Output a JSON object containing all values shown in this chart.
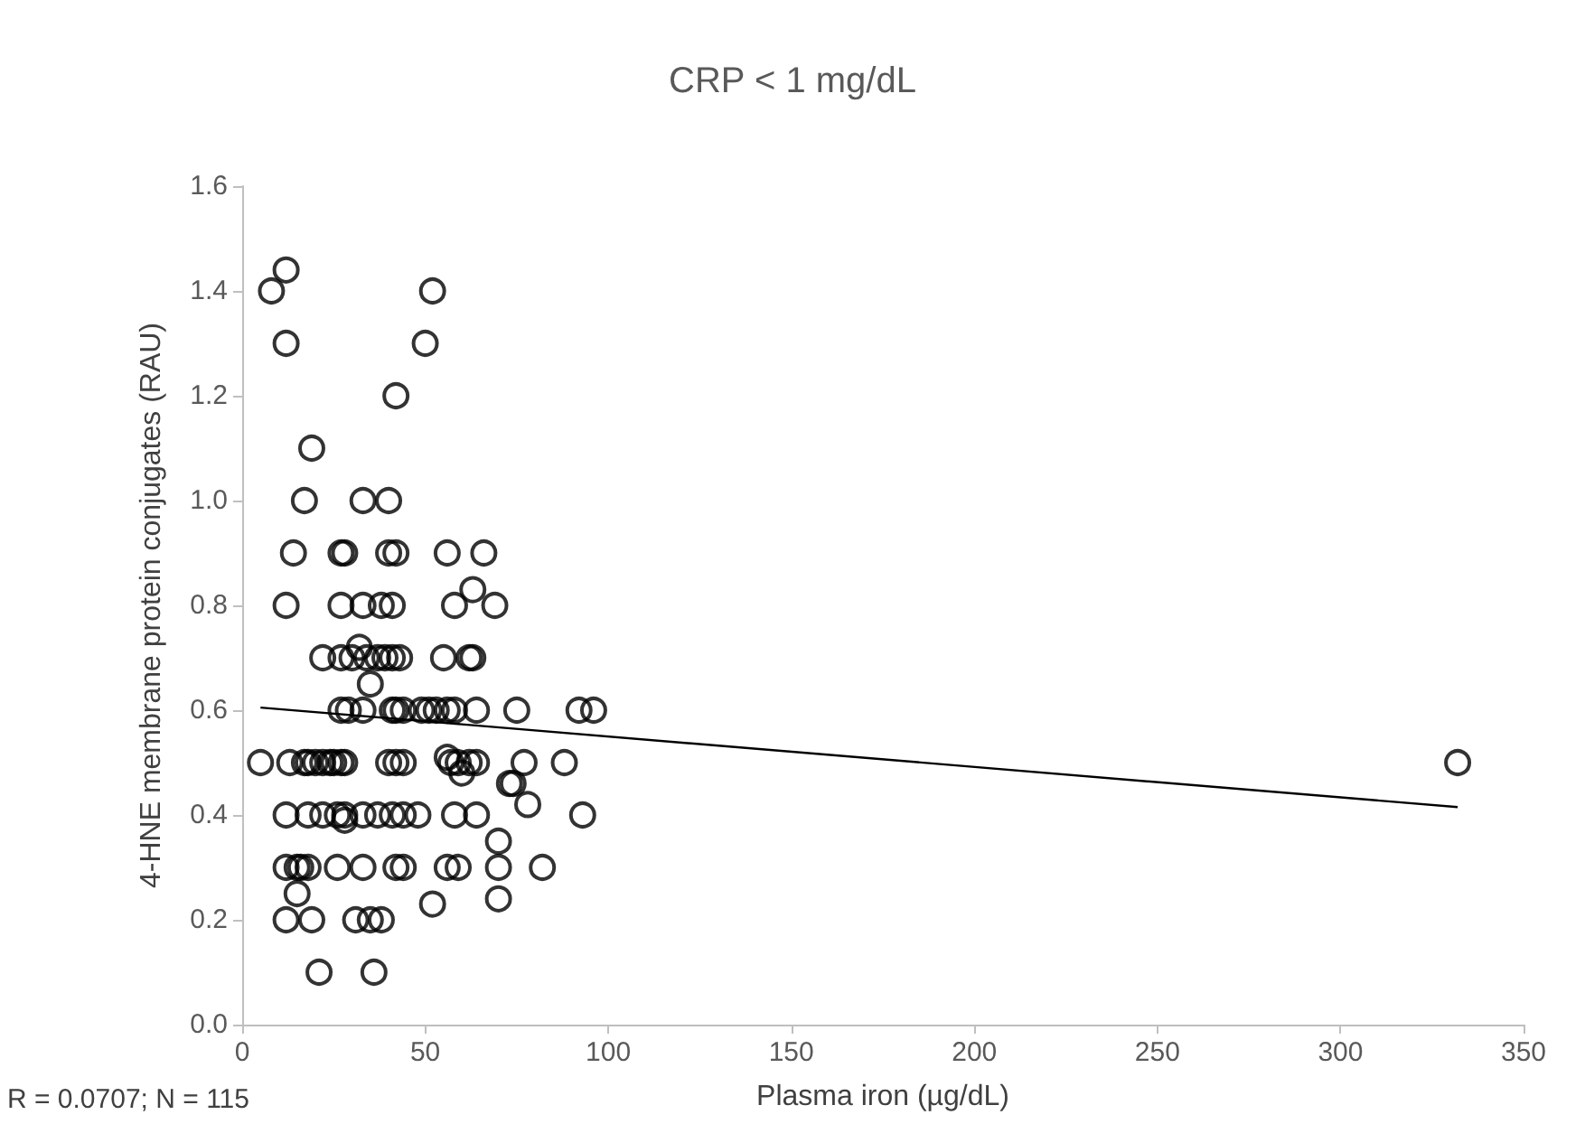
{
  "chart_data": {
    "type": "scatter",
    "title": "CRP < 1 mg/dL",
    "xlabel": "Plasma iron (µg/dL)",
    "ylabel": "4-HNE membrane protein conjugates (RAU)",
    "annotations": [
      "R = 0.0707; N = 115"
    ],
    "xlim": [
      0,
      350
    ],
    "xticks": [
      0,
      50,
      100,
      150,
      200,
      250,
      300,
      350
    ],
    "ylim": [
      0,
      1.6
    ],
    "yticks": [
      {
        "value": 0,
        "label": "0.0"
      },
      {
        "value": 0.2,
        "label": "0.2"
      },
      {
        "value": 0.4,
        "label": "0.4"
      },
      {
        "value": 0.6,
        "label": "0.6"
      },
      {
        "value": 0.8,
        "label": "0.8"
      },
      {
        "value": 1,
        "label": "1.0"
      },
      {
        "value": 1.2,
        "label": "1.2"
      },
      {
        "value": 1.4,
        "label": "1.4"
      },
      {
        "value": 1.6,
        "label": "1.6"
      }
    ],
    "grid": false,
    "marker": "circle",
    "series": [
      {
        "color": "#000000",
        "x": [
          12,
          8,
          52,
          12,
          50,
          42,
          19,
          17,
          33,
          40,
          14,
          27,
          28,
          40,
          42,
          56,
          66,
          12,
          27,
          33,
          38,
          41,
          58,
          69,
          63,
          32,
          22,
          27,
          30,
          34,
          37,
          39,
          41,
          43,
          55,
          62,
          63,
          35,
          27,
          29,
          33,
          41,
          42,
          44,
          49,
          51,
          53,
          56,
          58,
          64,
          75,
          92,
          96,
          5,
          13,
          17,
          18,
          20,
          22,
          24,
          25,
          27,
          28,
          40,
          42,
          44,
          57,
          59,
          62,
          64,
          77,
          88,
          56,
          60,
          73,
          74,
          78,
          12,
          18,
          22,
          26,
          28,
          33,
          37,
          41,
          44,
          48,
          58,
          64,
          93,
          28,
          70,
          12,
          15,
          16,
          18,
          26,
          33,
          42,
          44,
          56,
          59,
          70,
          82,
          15,
          70,
          52,
          12,
          19,
          31,
          35,
          38,
          21,
          36,
          332
        ],
        "values": [
          1.44,
          1.4,
          1.4,
          1.3,
          1.3,
          1.2,
          1.1,
          1.0,
          1.0,
          1.0,
          0.9,
          0.9,
          0.9,
          0.9,
          0.9,
          0.9,
          0.9,
          0.8,
          0.8,
          0.8,
          0.8,
          0.8,
          0.8,
          0.8,
          0.83,
          0.72,
          0.7,
          0.7,
          0.7,
          0.7,
          0.7,
          0.7,
          0.7,
          0.7,
          0.7,
          0.7,
          0.7,
          0.65,
          0.6,
          0.6,
          0.6,
          0.6,
          0.6,
          0.6,
          0.6,
          0.6,
          0.6,
          0.6,
          0.6,
          0.6,
          0.6,
          0.6,
          0.6,
          0.5,
          0.5,
          0.5,
          0.5,
          0.5,
          0.5,
          0.5,
          0.5,
          0.5,
          0.5,
          0.5,
          0.5,
          0.5,
          0.5,
          0.5,
          0.5,
          0.5,
          0.5,
          0.5,
          0.51,
          0.48,
          0.46,
          0.46,
          0.42,
          0.4,
          0.4,
          0.4,
          0.4,
          0.4,
          0.4,
          0.4,
          0.4,
          0.4,
          0.4,
          0.4,
          0.4,
          0.4,
          0.39,
          0.35,
          0.3,
          0.3,
          0.3,
          0.3,
          0.3,
          0.3,
          0.3,
          0.3,
          0.3,
          0.3,
          0.3,
          0.3,
          0.25,
          0.24,
          0.23,
          0.2,
          0.2,
          0.2,
          0.2,
          0.2,
          0.1,
          0.1,
          0.5
        ]
      },
      {
        "type": "line",
        "color": "#000000",
        "marker": "none",
        "x": [
          5,
          332
        ],
        "values": [
          0.605,
          0.415
        ]
      }
    ]
  }
}
